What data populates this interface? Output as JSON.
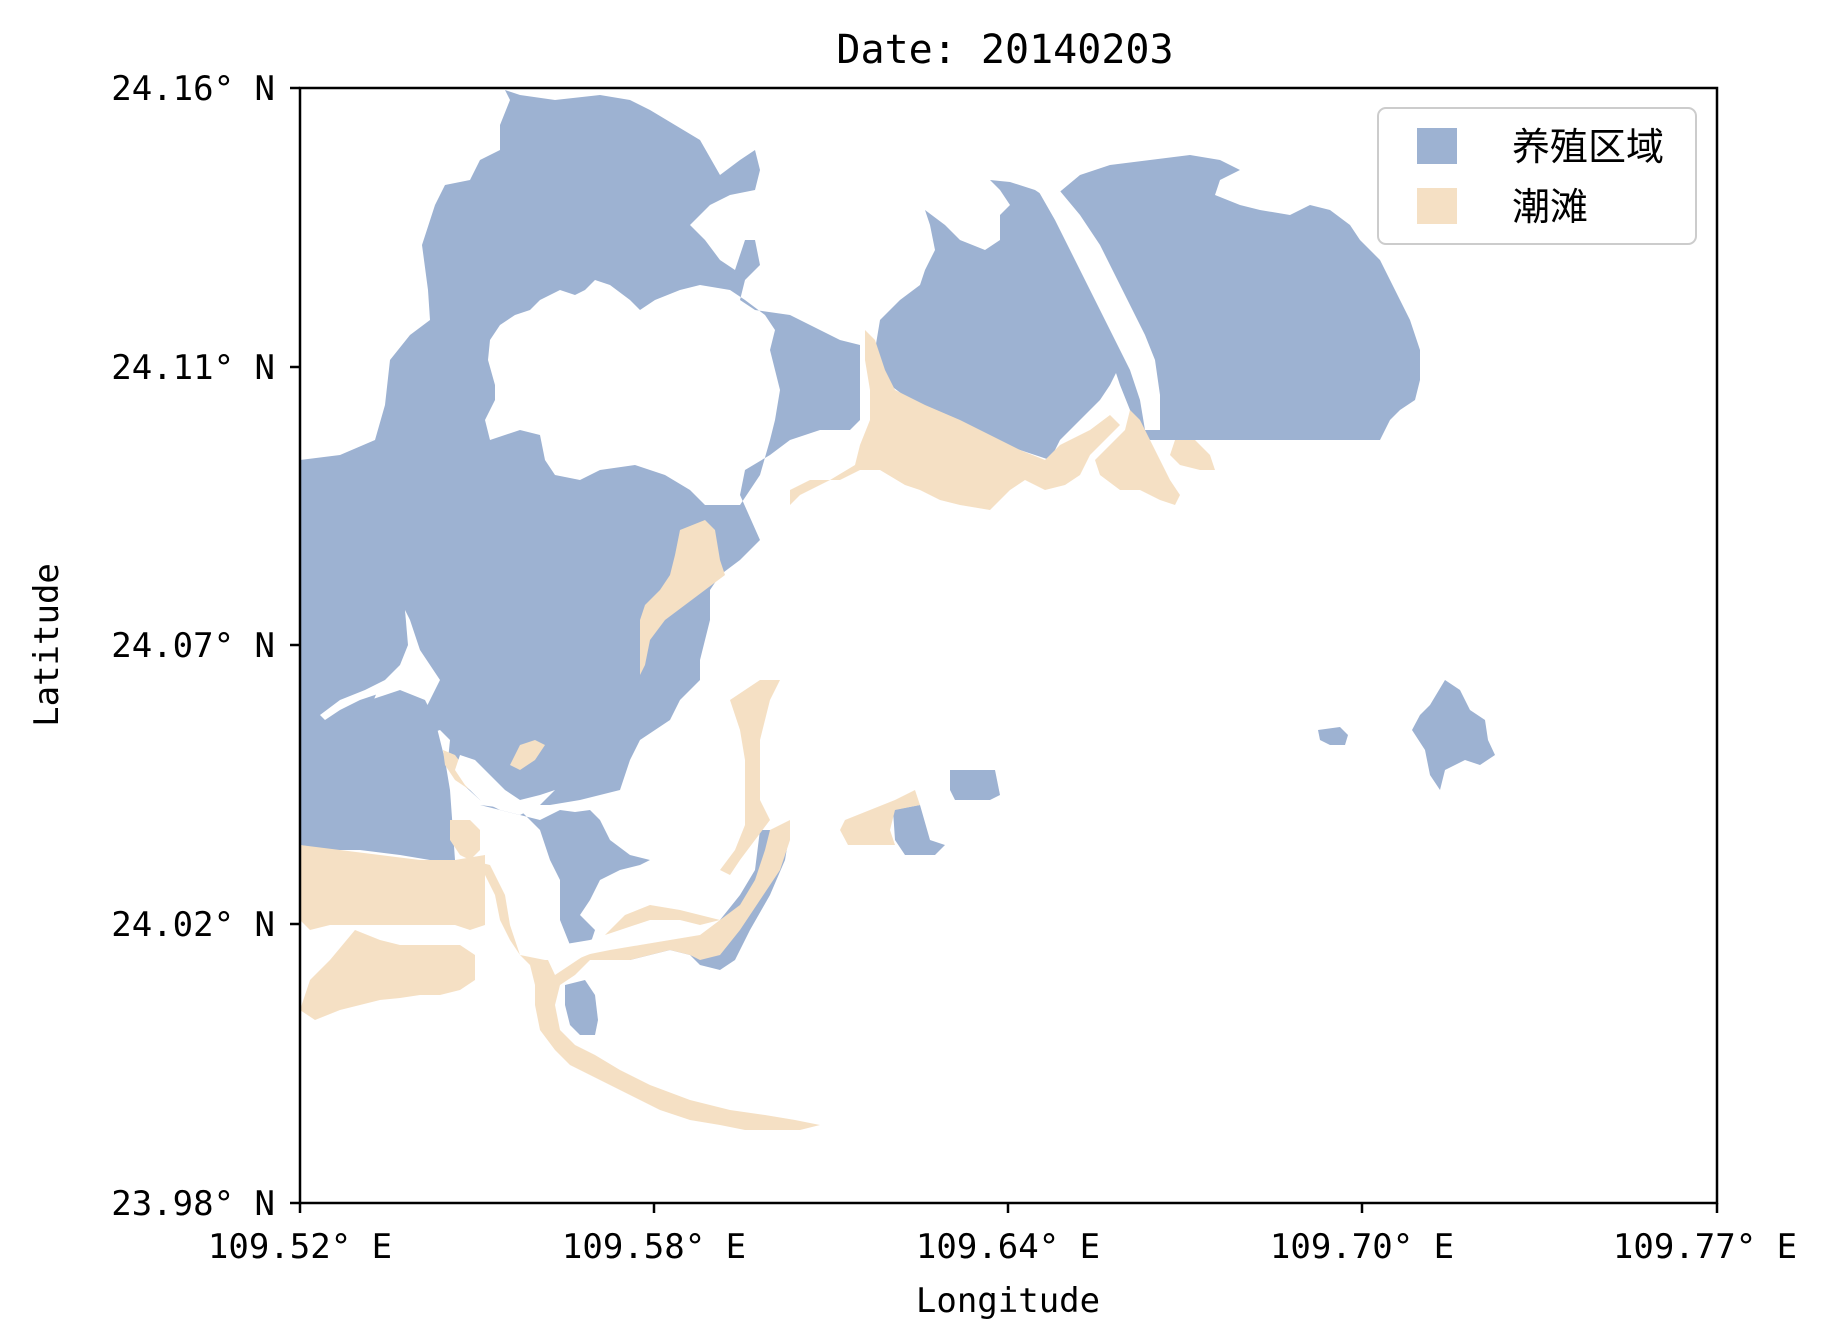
{
  "map": {
    "title": "Date: 20140203",
    "xlabel": "Longitude",
    "ylabel": "Latitude",
    "x_ticks": [
      "109.52°  E",
      "109.58°  E",
      "109.64°  E",
      "109.70°  E",
      "109.77°  E"
    ],
    "y_ticks": [
      "24.16°  N",
      "24.11°  N",
      "24.07°  N",
      "24.02°  N",
      "23.98°  N"
    ],
    "legend": [
      {
        "label": "养殖区域",
        "color": "#9db2d2"
      },
      {
        "label": "潮滩",
        "color": "#f5e0c4"
      }
    ],
    "colors": {
      "aquaculture": "#9db2d2",
      "tidal_flat": "#f5e0c4",
      "background": "#ffffff"
    }
  }
}
